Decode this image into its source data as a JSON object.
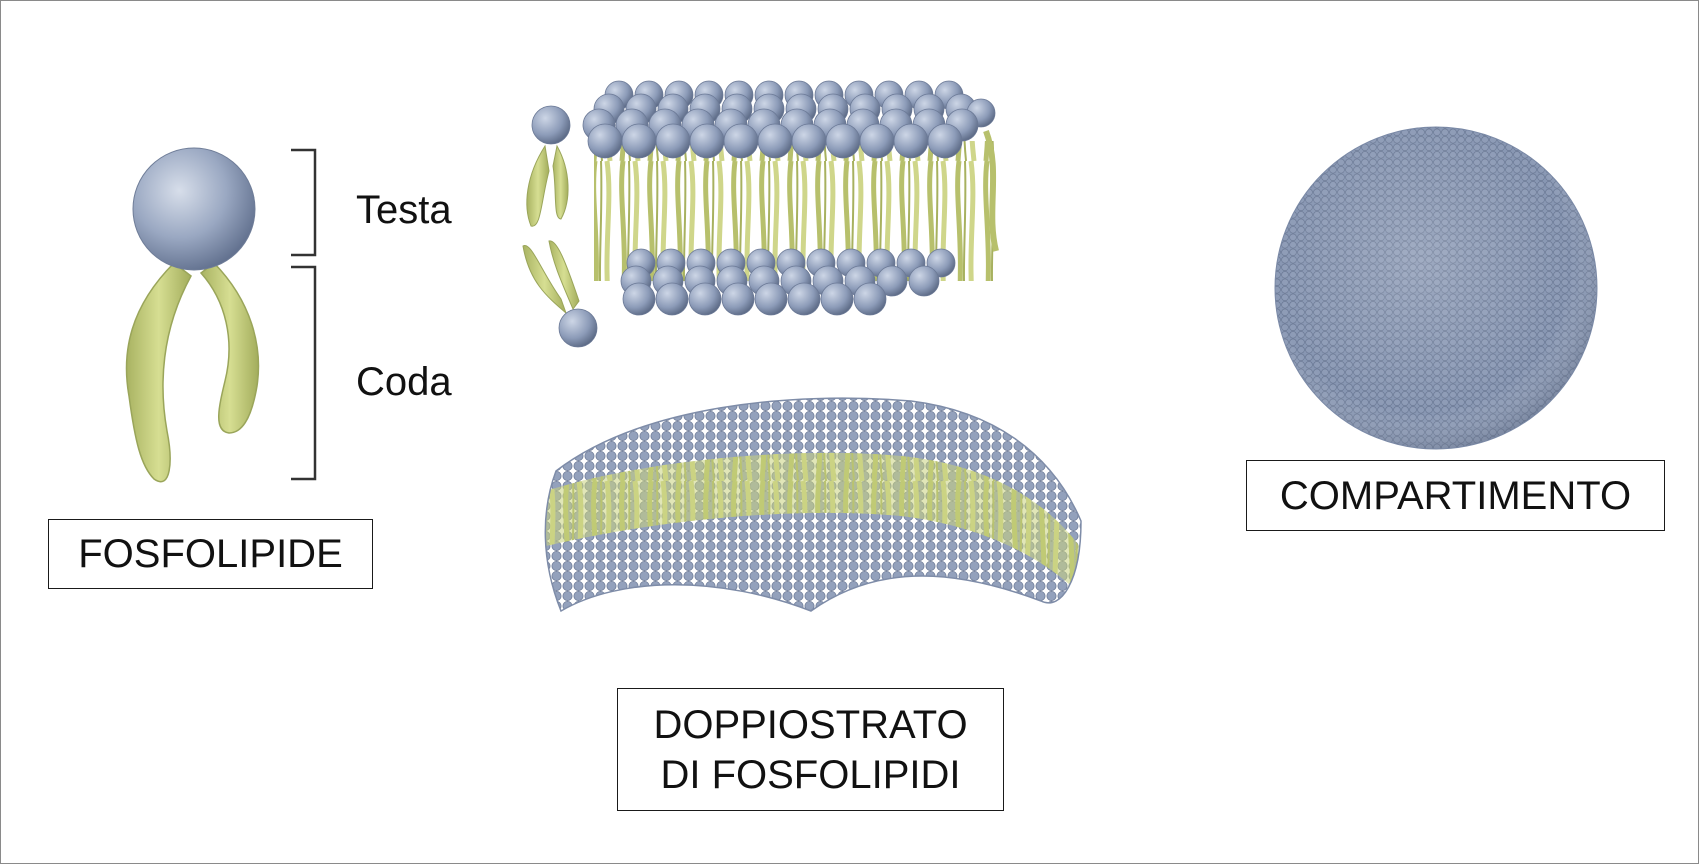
{
  "phospholipid": {
    "head_label": "Testa",
    "tail_label": "Coda",
    "caption": "FOSFOLIPIDE"
  },
  "bilayer": {
    "caption_line1": "DOPPIOSTRATO",
    "caption_line2": "DI FOSFOLIPIDI"
  },
  "compartment": {
    "caption": "COMPARTIMENTO"
  },
  "colors": {
    "head": "#8c9bb8",
    "head_dark": "#61708e",
    "tail": "#c9d27e",
    "tail_dark": "#9aa55a",
    "border": "#1a1a1a"
  }
}
